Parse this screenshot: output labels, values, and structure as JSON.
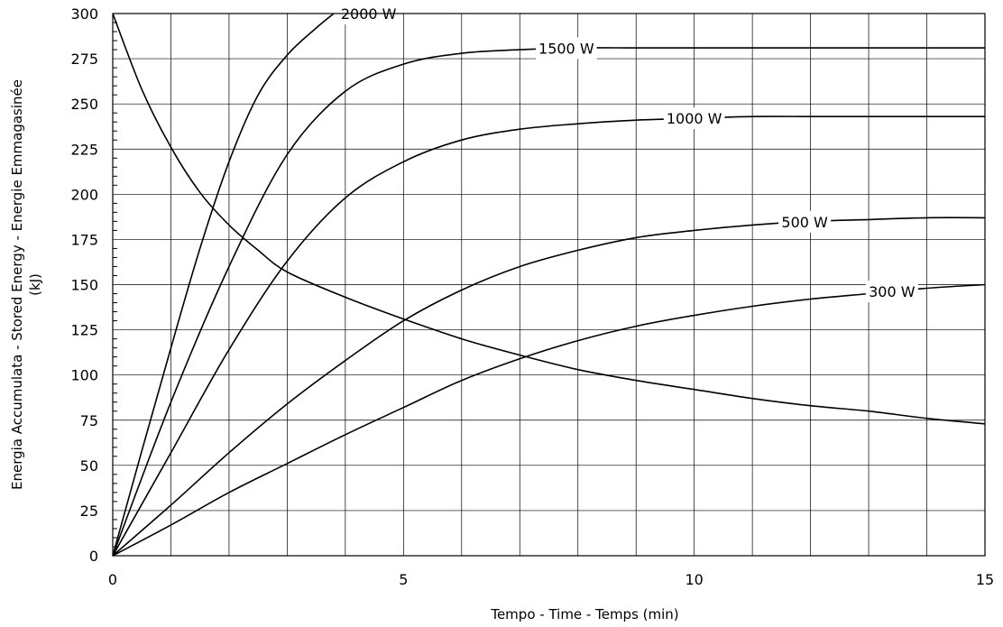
{
  "chart_data": {
    "type": "line",
    "title": "",
    "xlabel": "Tempo - Time - Temps   (min)",
    "ylabel_line1": "Energia Accumulata - Stored Energy - Energie Emmagasinée",
    "ylabel_line2": "(kJ)",
    "xlim": [
      0,
      15
    ],
    "ylim": [
      0,
      300
    ],
    "x_ticks": [
      "0",
      "5",
      "10",
      "15"
    ],
    "y_ticks": [
      "0",
      "25",
      "50",
      "75",
      "100",
      "125",
      "150",
      "175",
      "200",
      "225",
      "250",
      "275",
      "300"
    ],
    "grid": true,
    "series": [
      {
        "name": "2000 W",
        "x": [
          0,
          0.5,
          1,
          1.5,
          2,
          2.5,
          3,
          3.5,
          3.8
        ],
        "y": [
          0,
          58,
          115,
          170,
          218,
          255,
          277,
          292,
          300
        ]
      },
      {
        "name": "1500 W",
        "x": [
          0,
          1,
          2,
          3,
          4,
          5,
          6,
          7,
          8,
          9,
          10,
          11,
          12,
          13,
          14,
          15
        ],
        "y": [
          0,
          85,
          160,
          222,
          257,
          272,
          278,
          280,
          281,
          281,
          281,
          281,
          281,
          281,
          281,
          281
        ]
      },
      {
        "name": "1000 W",
        "x": [
          0,
          1,
          2,
          3,
          4,
          5,
          6,
          7,
          8,
          9,
          10,
          11,
          12,
          13,
          14,
          15
        ],
        "y": [
          0,
          57,
          114,
          163,
          198,
          218,
          230,
          236,
          239,
          241,
          242,
          243,
          243,
          243,
          243,
          243
        ]
      },
      {
        "name": "500 W",
        "x": [
          0,
          1,
          2,
          3,
          4,
          5,
          6,
          7,
          8,
          9,
          10,
          11,
          12,
          13,
          14,
          15
        ],
        "y": [
          0,
          28,
          57,
          84,
          108,
          130,
          147,
          160,
          169,
          176,
          180,
          183,
          185,
          186,
          187,
          187
        ]
      },
      {
        "name": "300 W",
        "x": [
          0,
          1,
          2,
          3,
          4,
          5,
          6,
          7,
          8,
          9,
          10,
          11,
          12,
          13,
          14,
          15
        ],
        "y": [
          0,
          17,
          35,
          51,
          67,
          82,
          97,
          109,
          119,
          127,
          133,
          138,
          142,
          145,
          148,
          150
        ]
      },
      {
        "name": "",
        "x": [
          0,
          0.5,
          1,
          1.5,
          2,
          2.5,
          3,
          4,
          5,
          6,
          7,
          8,
          9,
          10,
          11,
          12,
          13,
          14,
          15
        ],
        "y": [
          300,
          258,
          226,
          201,
          183,
          169,
          157,
          143,
          131,
          120,
          111,
          103,
          97,
          92,
          87,
          83,
          80,
          76,
          73
        ]
      }
    ],
    "series_labels_at_x": [
      4.4,
      7.8,
      10.0,
      11.9,
      13.4
    ],
    "curve_color": "#000000",
    "grid_color": "#000000"
  }
}
